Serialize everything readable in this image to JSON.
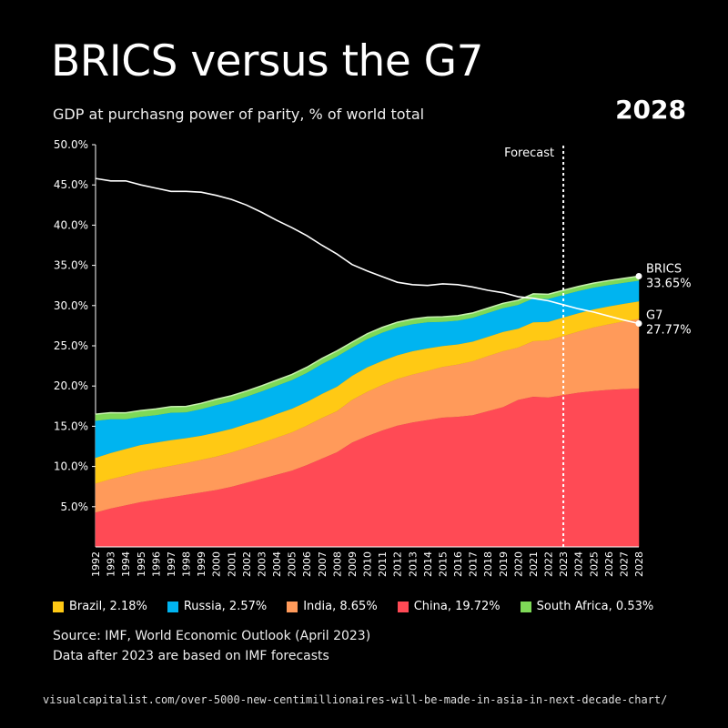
{
  "header": {
    "title": "BRICS versus the G7",
    "subtitle": "GDP at purchasng power of parity, % of world total",
    "year": "2028"
  },
  "chart_data": {
    "type": "area",
    "stacked": true,
    "ylabel": "",
    "xlabel": "",
    "ylim": [
      0,
      50
    ],
    "yticks": [
      "5.0%",
      "10.0%",
      "15.0%",
      "20.0%",
      "25.0%",
      "30.0%",
      "35.0%",
      "40.0%",
      "45.0%",
      "50.0%"
    ],
    "x": [
      1992,
      1993,
      1994,
      1995,
      1996,
      1997,
      1998,
      1999,
      2000,
      2001,
      2002,
      2003,
      2004,
      2005,
      2006,
      2007,
      2008,
      2009,
      2010,
      2011,
      2012,
      2013,
      2014,
      2015,
      2016,
      2017,
      2018,
      2019,
      2020,
      2021,
      2022,
      2023,
      2024,
      2025,
      2026,
      2027,
      2028
    ],
    "forecast_from": 2023,
    "forecast_label": "Forecast",
    "series": [
      {
        "name": "China",
        "legend": "China, 19.72%",
        "color": "#ff4a55",
        "values": [
          4.3,
          4.8,
          5.2,
          5.6,
          5.9,
          6.2,
          6.5,
          6.8,
          7.1,
          7.5,
          8.0,
          8.5,
          9.0,
          9.5,
          10.2,
          11.0,
          11.8,
          13.0,
          13.8,
          14.5,
          15.1,
          15.5,
          15.8,
          16.1,
          16.2,
          16.4,
          16.9,
          17.4,
          18.3,
          18.7,
          18.6,
          18.9,
          19.2,
          19.4,
          19.55,
          19.65,
          19.72
        ]
      },
      {
        "name": "India",
        "legend": "India, 8.65%",
        "color": "#ff9a5a",
        "values": [
          3.6,
          3.65,
          3.7,
          3.8,
          3.85,
          3.9,
          3.95,
          4.05,
          4.15,
          4.25,
          4.35,
          4.45,
          4.6,
          4.75,
          4.9,
          5.05,
          5.1,
          5.3,
          5.5,
          5.65,
          5.8,
          5.95,
          6.1,
          6.3,
          6.5,
          6.7,
          6.85,
          6.95,
          6.5,
          6.9,
          7.1,
          7.35,
          7.6,
          7.9,
          8.15,
          8.4,
          8.65
        ]
      },
      {
        "name": "Brazil",
        "legend": "Brazil, 2.18%",
        "color": "#ffc914",
        "values": [
          3.2,
          3.25,
          3.3,
          3.3,
          3.25,
          3.2,
          3.1,
          3.0,
          3.0,
          2.95,
          2.95,
          2.9,
          2.95,
          2.95,
          2.95,
          3.0,
          3.05,
          3.0,
          3.05,
          3.0,
          2.95,
          2.9,
          2.8,
          2.6,
          2.5,
          2.45,
          2.4,
          2.4,
          2.35,
          2.35,
          2.3,
          2.3,
          2.28,
          2.25,
          2.22,
          2.2,
          2.18
        ]
      },
      {
        "name": "Russia",
        "legend": "Russia, 2.57%",
        "color": "#00b4f0",
        "values": [
          4.6,
          4.2,
          3.7,
          3.5,
          3.4,
          3.4,
          3.2,
          3.3,
          3.4,
          3.4,
          3.4,
          3.5,
          3.5,
          3.55,
          3.6,
          3.7,
          3.75,
          3.5,
          3.5,
          3.5,
          3.45,
          3.35,
          3.25,
          3.0,
          2.95,
          2.95,
          2.95,
          2.95,
          2.95,
          2.95,
          2.85,
          2.8,
          2.75,
          2.7,
          2.65,
          2.6,
          2.57
        ]
      },
      {
        "name": "South Africa",
        "legend": "South Africa, 0.53%",
        "color": "#7ed957",
        "values": [
          0.8,
          0.78,
          0.77,
          0.76,
          0.75,
          0.74,
          0.72,
          0.7,
          0.7,
          0.69,
          0.68,
          0.68,
          0.68,
          0.68,
          0.68,
          0.68,
          0.67,
          0.65,
          0.65,
          0.64,
          0.63,
          0.62,
          0.61,
          0.6,
          0.6,
          0.59,
          0.58,
          0.58,
          0.56,
          0.56,
          0.56,
          0.55,
          0.55,
          0.54,
          0.54,
          0.53,
          0.53
        ]
      }
    ],
    "lines": [
      {
        "name": "G7",
        "end_label": "27.77%",
        "color": "#ffffff",
        "values": [
          45.8,
          45.5,
          45.5,
          45.0,
          44.6,
          44.2,
          44.2,
          44.1,
          43.7,
          43.2,
          42.5,
          41.6,
          40.6,
          39.7,
          38.7,
          37.5,
          36.4,
          35.1,
          34.3,
          33.6,
          32.9,
          32.6,
          32.5,
          32.7,
          32.6,
          32.3,
          31.9,
          31.6,
          31.1,
          30.9,
          30.6,
          30.1,
          29.6,
          29.2,
          28.7,
          28.2,
          27.77
        ]
      }
    ],
    "totals_label": {
      "name": "BRICS",
      "end_label": "33.65%"
    },
    "legend_order": [
      "Brazil",
      "Russia",
      "India",
      "China",
      "South Africa"
    ],
    "legend_position": "bottom"
  },
  "footer": {
    "source": "Source: IMF, World Economic Outlook (April 2023)",
    "note": "Data after 2023 are based on IMF forecasts",
    "url": "visualcapitalist.com/over-5000-new-centimillionaires-will-be-made-in-asia-in-next-decade-chart/"
  }
}
